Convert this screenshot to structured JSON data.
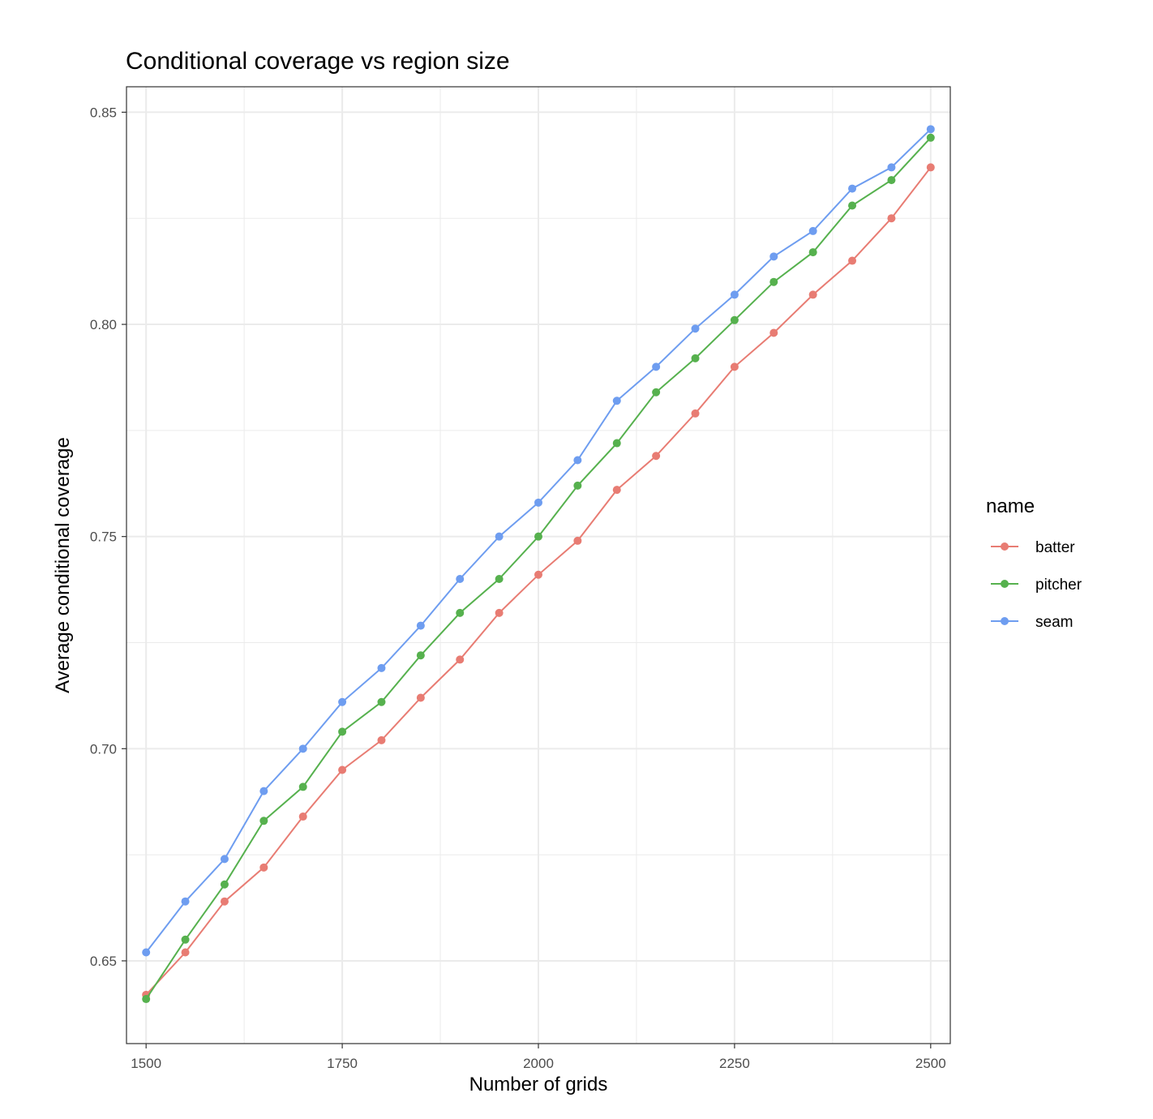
{
  "chart_data": {
    "type": "line",
    "title": "Conditional coverage vs region size",
    "xlabel": "Number of grids",
    "ylabel": "Average conditional coverage",
    "xlim": [
      1475,
      2525
    ],
    "ylim": [
      0.6305,
      0.856
    ],
    "x_ticks": [
      1500,
      1750,
      2000,
      2250,
      2500
    ],
    "x_tick_labels": [
      "1500",
      "1750",
      "2000",
      "2250",
      "2500"
    ],
    "x_minor_ticks": [
      1625,
      1875,
      2125,
      2375
    ],
    "y_ticks": [
      0.65,
      0.7,
      0.75,
      0.8,
      0.85
    ],
    "y_tick_labels": [
      "0.65",
      "0.70",
      "0.75",
      "0.80",
      "0.85"
    ],
    "y_minor_ticks": [
      0.675,
      0.725,
      0.775,
      0.825
    ],
    "grid": true,
    "legend": {
      "title": "name",
      "placement": "right"
    },
    "x": [
      1500,
      1550,
      1600,
      1650,
      1700,
      1750,
      1800,
      1850,
      1900,
      1950,
      2000,
      2050,
      2100,
      2150,
      2200,
      2250,
      2300,
      2350,
      2400,
      2450,
      2500
    ],
    "series": [
      {
        "name": "batter",
        "color": "#E87C73",
        "values": [
          0.642,
          0.652,
          0.664,
          0.672,
          0.684,
          0.695,
          0.702,
          0.712,
          0.721,
          0.732,
          0.741,
          0.749,
          0.761,
          0.769,
          0.779,
          0.79,
          0.798,
          0.807,
          0.815,
          0.825,
          0.837
        ]
      },
      {
        "name": "pitcher",
        "color": "#56B14E",
        "values": [
          0.641,
          0.655,
          0.668,
          0.683,
          0.691,
          0.704,
          0.711,
          0.722,
          0.732,
          0.74,
          0.75,
          0.762,
          0.772,
          0.784,
          0.792,
          0.801,
          0.81,
          0.817,
          0.828,
          0.834,
          0.844
        ]
      },
      {
        "name": "seam",
        "color": "#6E9DF0",
        "values": [
          0.652,
          0.664,
          0.674,
          0.69,
          0.7,
          0.711,
          0.719,
          0.729,
          0.74,
          0.75,
          0.758,
          0.768,
          0.782,
          0.79,
          0.799,
          0.807,
          0.816,
          0.822,
          0.832,
          0.837,
          0.846
        ]
      }
    ]
  }
}
